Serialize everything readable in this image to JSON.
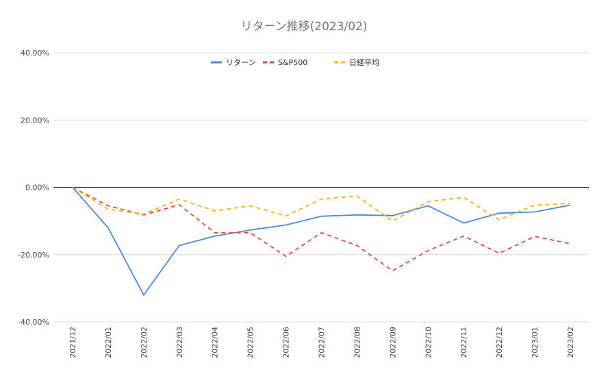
{
  "chart_data": {
    "type": "line",
    "title": "リターン推移(2023/02)",
    "categories": [
      "2021/12",
      "2022/01",
      "2022/02",
      "2022/03",
      "2022/04",
      "2022/05",
      "2022/06",
      "2022/07",
      "2022/08",
      "2022/09",
      "2022/10",
      "2022/11",
      "2022/12",
      "2023/01",
      "2023/02"
    ],
    "y_ticks": [
      "40.00%",
      "20.00%",
      "0.00%",
      "-20.00%",
      "-40.00%"
    ],
    "ylim": [
      -40,
      40
    ],
    "y_unit": "percent",
    "grid": true,
    "legend_position": "top",
    "series": [
      {
        "name": "リターン",
        "color": "#4a86e8",
        "dash": "solid",
        "values": [
          0,
          -12,
          -32,
          -17.3,
          -14.5,
          -12.7,
          -11.2,
          -8.6,
          -8.2,
          -8.4,
          -5.5,
          -10.6,
          -7.7,
          -7.3,
          -5.3
        ]
      },
      {
        "name": "S&P500",
        "color": "#e0463a",
        "dash": "dashed",
        "values": [
          0,
          -5.5,
          -8.2,
          -5.2,
          -13.5,
          -13.5,
          -20.5,
          -13.5,
          -17.3,
          -24.8,
          -18.8,
          -14.5,
          -19.6,
          -14.6,
          -16.8
        ]
      },
      {
        "name": "日経平均",
        "color": "#f4b400",
        "dash": "dashed",
        "values": [
          0,
          -6.5,
          -8.0,
          -3.5,
          -7.0,
          -5.5,
          -8.5,
          -3.5,
          -2.6,
          -10.0,
          -4.3,
          -3.0,
          -9.6,
          -5.3,
          -4.8
        ]
      }
    ]
  }
}
